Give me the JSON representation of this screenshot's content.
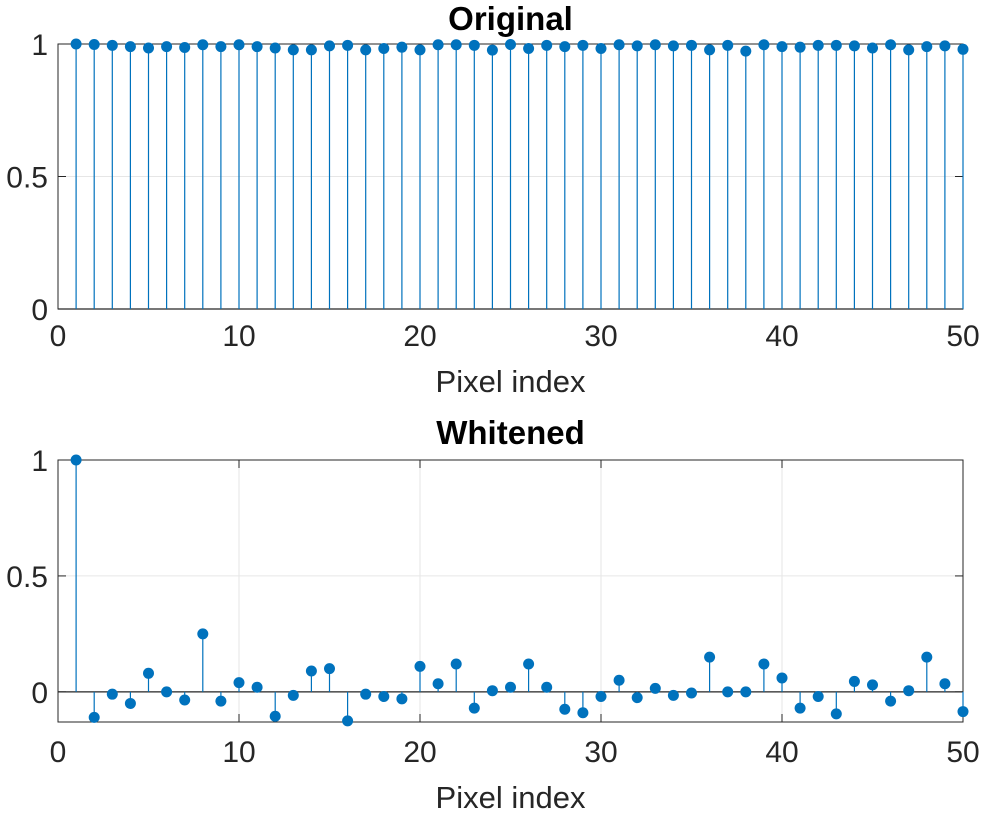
{
  "colors": {
    "series": "#0072bd",
    "axes": "#262626",
    "grid": "#e6e6e6"
  },
  "chart_data": [
    {
      "type": "stem",
      "title": "Original",
      "xlabel": "Pixel index",
      "ylabel": "",
      "xlim": [
        0,
        50
      ],
      "ylim": [
        0,
        1
      ],
      "xticks": [
        "0",
        "10",
        "20",
        "30",
        "40",
        "50"
      ],
      "yticks": [
        "0",
        "0.5",
        "1"
      ],
      "grid": "on",
      "series": [
        {
          "x": [
            1,
            2,
            3,
            4,
            5,
            6,
            7,
            8,
            9,
            10,
            11,
            12,
            13,
            14,
            15,
            16,
            17,
            18,
            19,
            20,
            21,
            22,
            23,
            24,
            25,
            26,
            27,
            28,
            29,
            30,
            31,
            32,
            33,
            34,
            35,
            36,
            37,
            38,
            39,
            40,
            41,
            42,
            43,
            44,
            45,
            46,
            47,
            48,
            49,
            50
          ],
          "values": [
            1.0,
            0.998,
            0.995,
            0.99,
            0.985,
            0.99,
            0.987,
            0.997,
            0.99,
            0.997,
            0.99,
            0.985,
            0.978,
            0.978,
            0.993,
            0.995,
            0.978,
            0.983,
            0.988,
            0.978,
            0.997,
            0.997,
            0.995,
            0.977,
            0.998,
            0.983,
            0.995,
            0.99,
            0.995,
            0.983,
            0.997,
            0.993,
            0.997,
            0.993,
            0.995,
            0.978,
            0.995,
            0.973,
            0.997,
            0.99,
            0.988,
            0.995,
            0.995,
            0.993,
            0.985,
            0.997,
            0.978,
            0.99,
            0.993,
            0.98
          ]
        }
      ]
    },
    {
      "type": "stem",
      "title": "Whitened",
      "xlabel": "Pixel index",
      "ylabel": "",
      "xlim": [
        0,
        50
      ],
      "ylim": [
        -0.13,
        1
      ],
      "xticks": [
        "0",
        "10",
        "20",
        "30",
        "40",
        "50"
      ],
      "yticks": [
        "0",
        "0.5",
        "1"
      ],
      "grid": "on",
      "series": [
        {
          "x": [
            1,
            2,
            3,
            4,
            5,
            6,
            7,
            8,
            9,
            10,
            11,
            12,
            13,
            14,
            15,
            16,
            17,
            18,
            19,
            20,
            21,
            22,
            23,
            24,
            25,
            26,
            27,
            28,
            29,
            30,
            31,
            32,
            33,
            34,
            35,
            36,
            37,
            38,
            39,
            40,
            41,
            42,
            43,
            44,
            45,
            46,
            47,
            48,
            49,
            50
          ],
          "values": [
            1.0,
            -0.11,
            -0.01,
            -0.05,
            0.08,
            0.0,
            -0.035,
            0.25,
            -0.04,
            0.04,
            0.02,
            -0.105,
            -0.015,
            0.09,
            0.1,
            -0.125,
            -0.01,
            -0.02,
            -0.03,
            0.11,
            0.035,
            0.12,
            -0.07,
            0.005,
            0.02,
            0.12,
            0.02,
            -0.075,
            -0.09,
            -0.02,
            0.05,
            -0.025,
            0.015,
            -0.015,
            -0.005,
            0.15,
            0.0,
            0.0,
            0.12,
            0.06,
            -0.07,
            -0.02,
            -0.095,
            0.045,
            0.03,
            -0.04,
            0.005,
            0.15,
            0.035,
            -0.085
          ]
        }
      ]
    }
  ]
}
